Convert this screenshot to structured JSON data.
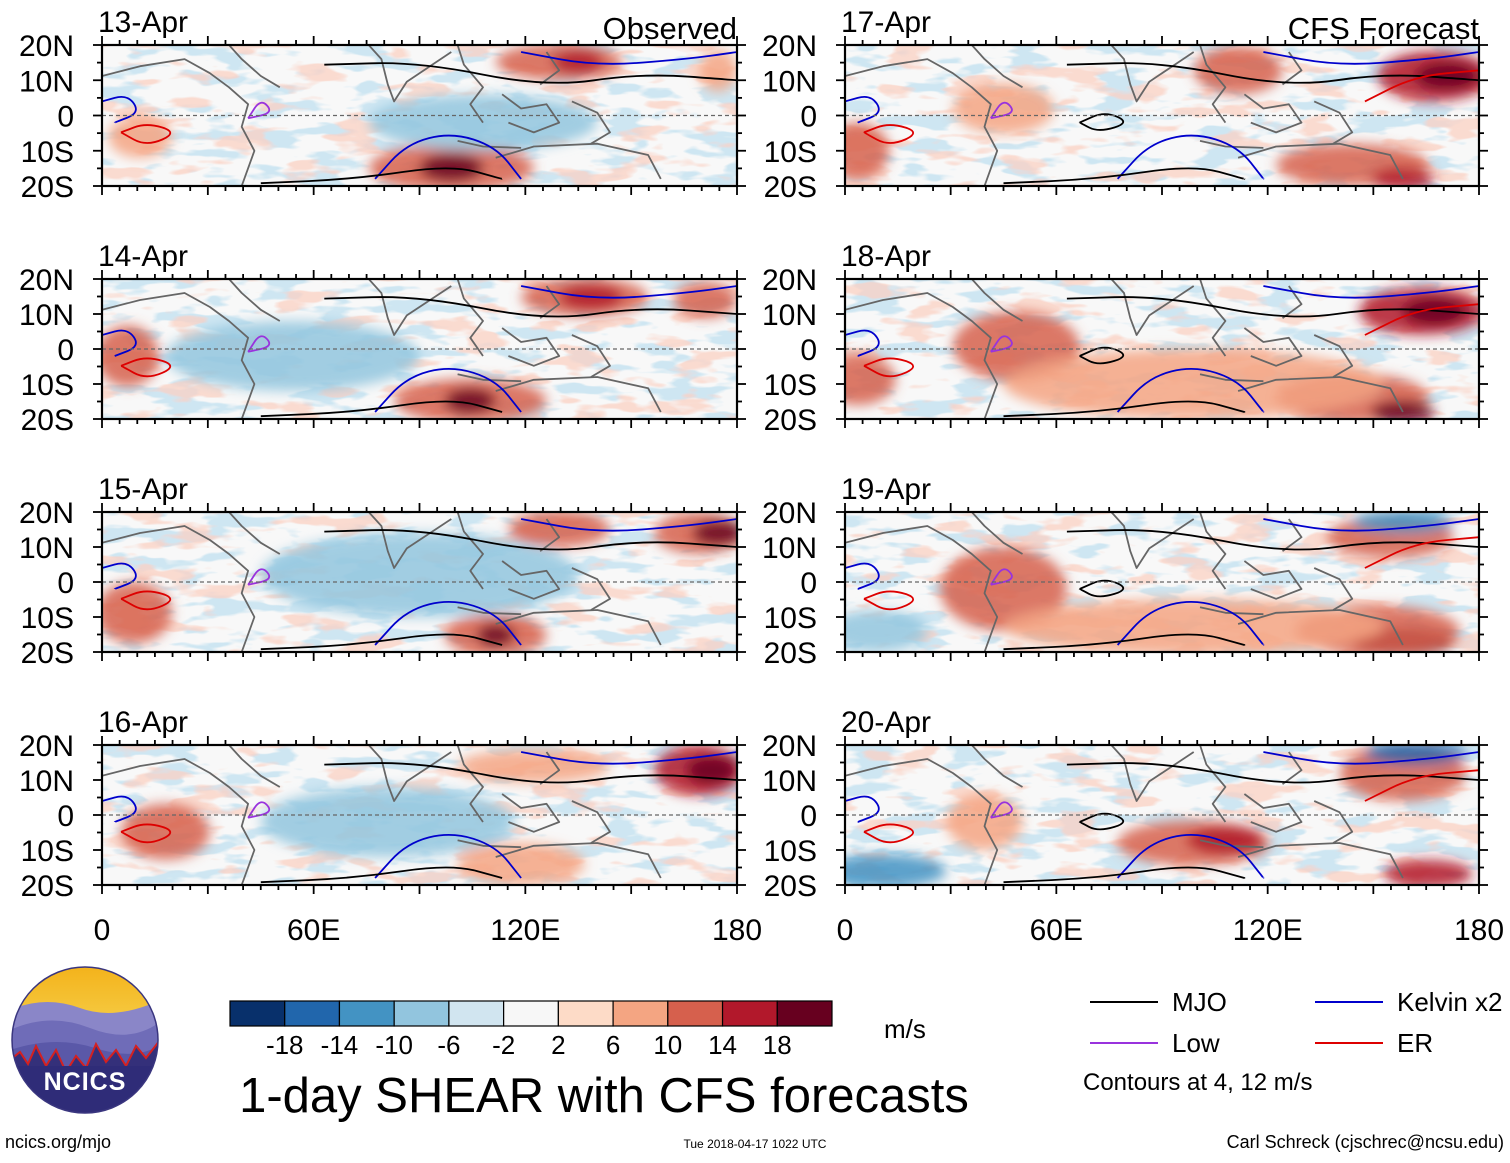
{
  "panels": [
    {
      "date": "13-Apr",
      "label": "Observed"
    },
    {
      "date": "14-Apr",
      "label": ""
    },
    {
      "date": "15-Apr",
      "label": ""
    },
    {
      "date": "16-Apr",
      "label": ""
    },
    {
      "date": "17-Apr",
      "label": "CFS Forecast"
    },
    {
      "date": "18-Apr",
      "label": ""
    },
    {
      "date": "19-Apr",
      "label": ""
    },
    {
      "date": "20-Apr",
      "label": ""
    }
  ],
  "axes": {
    "y_labels": [
      "20N",
      "10N",
      "0",
      "10S",
      "20S"
    ],
    "x_labels": [
      "0",
      "60E",
      "120E",
      "180"
    ]
  },
  "colorbar": {
    "ticks": [
      "-18",
      "-14",
      "-10",
      "-6",
      "-2",
      "2",
      "6",
      "10",
      "14",
      "18"
    ],
    "unit": "m/s",
    "colors": [
      "#08306b",
      "#2166ac",
      "#4393c3",
      "#92c5de",
      "#d1e5f0",
      "#f7f7f7",
      "#fddbc7",
      "#f4a582",
      "#d6604d",
      "#b2182b",
      "#67001f"
    ]
  },
  "legend": {
    "items": [
      {
        "label": "MJO",
        "color": "#000000"
      },
      {
        "label": "Kelvin x2",
        "color": "#0000cc"
      },
      {
        "label": "Low",
        "color": "#9933dd"
      },
      {
        "label": "ER",
        "color": "#dd0000"
      }
    ],
    "contours_text": "Contours at 4, 12 m/s"
  },
  "title": "1-day SHEAR with CFS forecasts",
  "logo": {
    "text": "NCICS"
  },
  "footer": {
    "left": "ncics.org/mjo",
    "center": "Tue 2018-04-17 1022 UTC",
    "right": "Carl Schreck (cjschrec@ncsu.edu)"
  }
}
